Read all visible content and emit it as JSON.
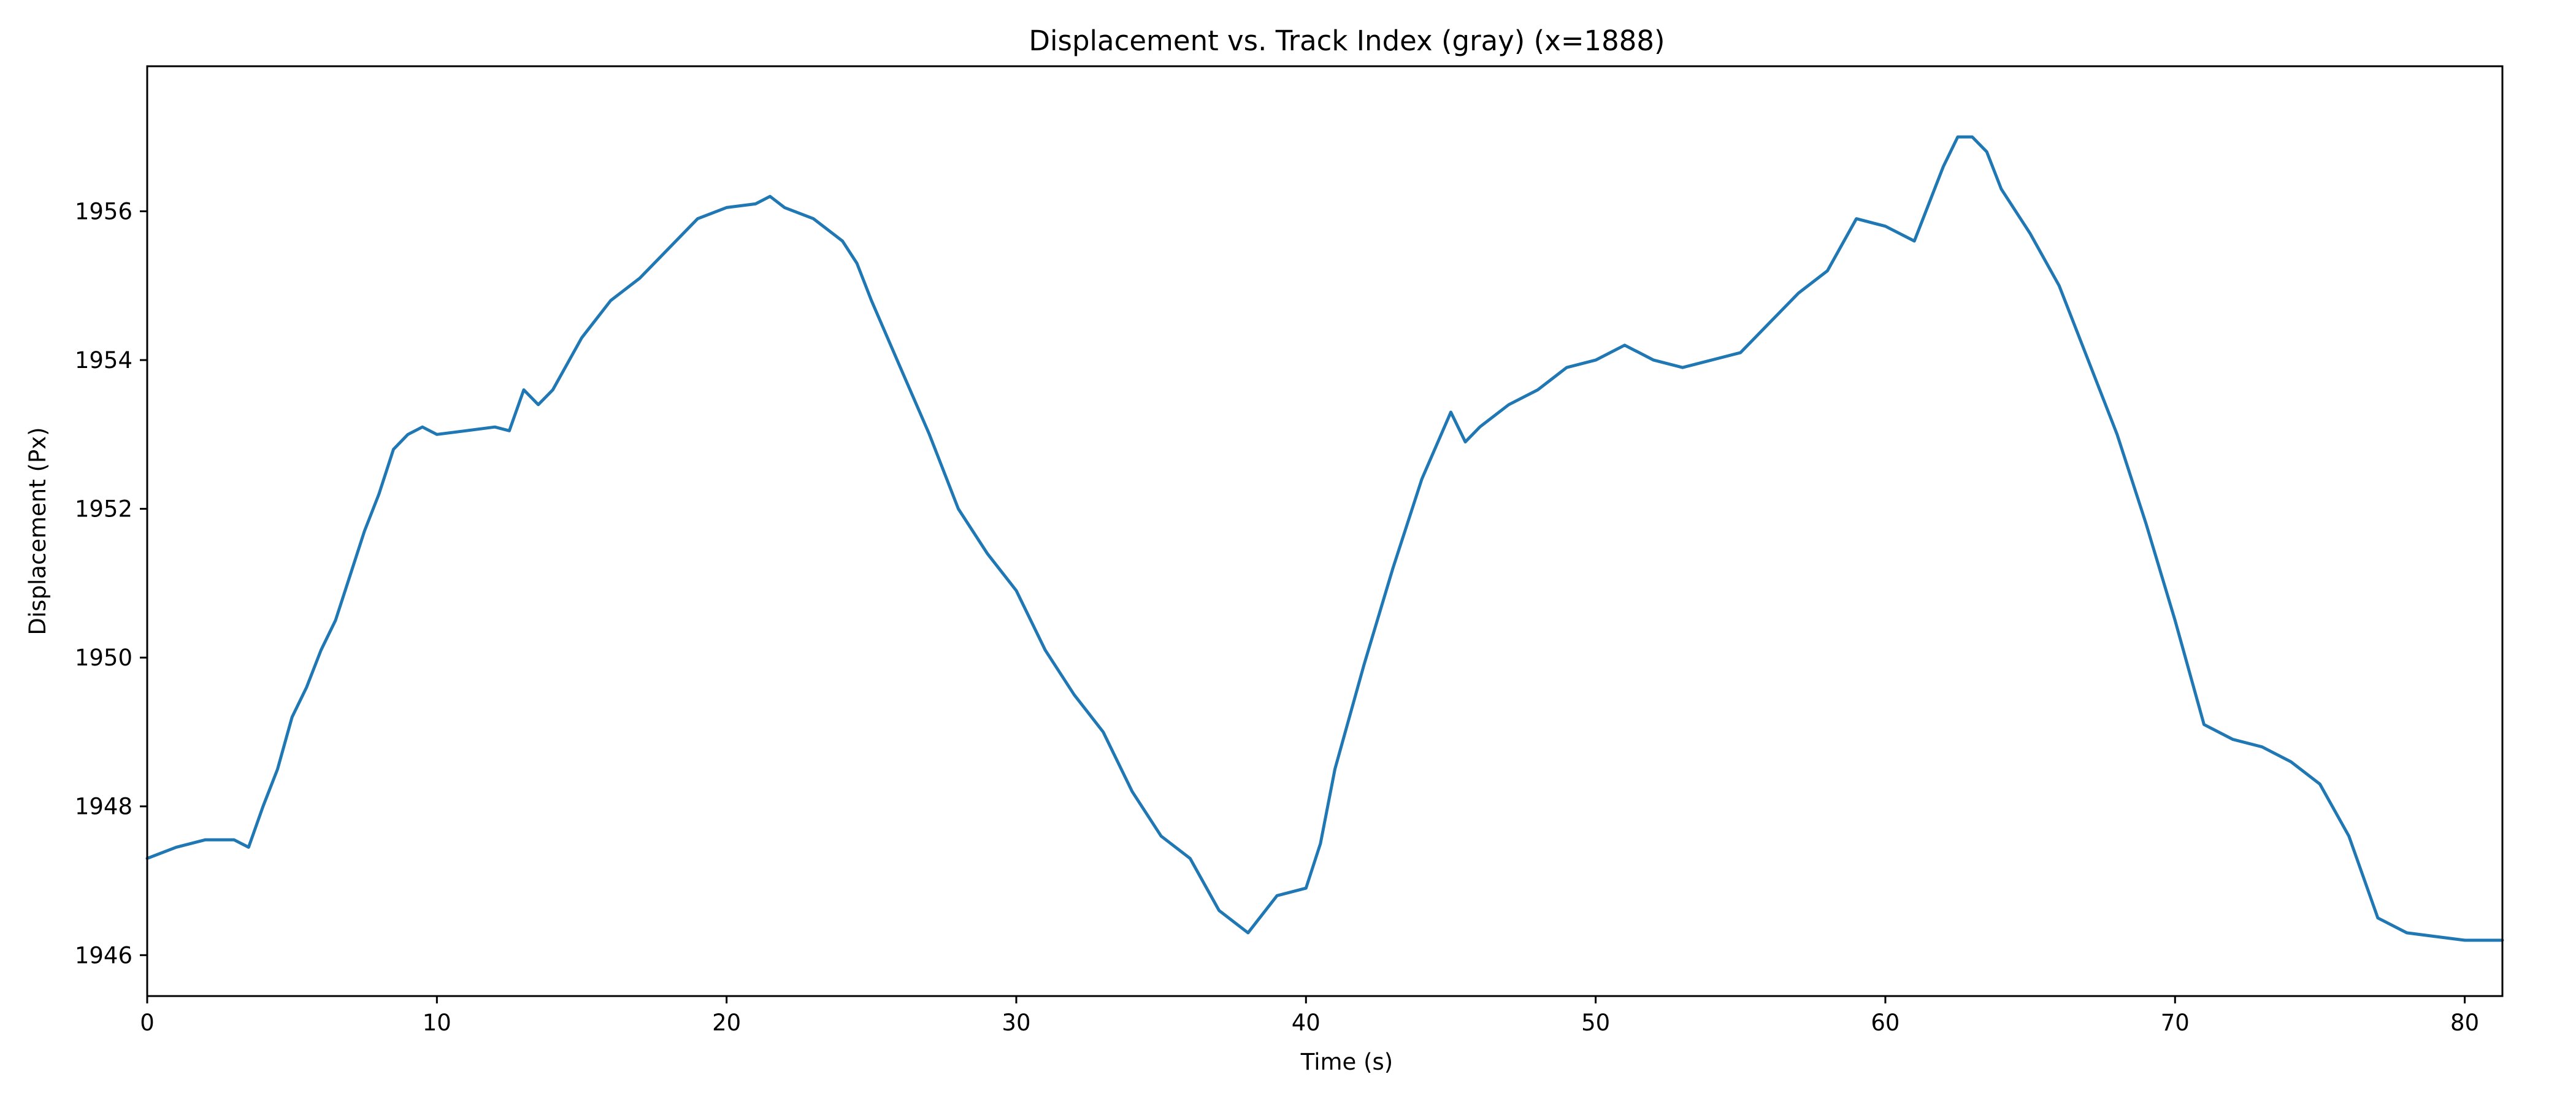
{
  "chart_data": {
    "type": "line",
    "title": "Displacement vs. Track Index (gray) (x=1888)",
    "xlabel": "Time (s)",
    "ylabel": "Displacement (Px)",
    "xlim": [
      0,
      81.3
    ],
    "ylim": [
      1945.45,
      1957.95
    ],
    "xticks": [
      0,
      10,
      20,
      30,
      40,
      50,
      60,
      70,
      80
    ],
    "yticks": [
      1946,
      1948,
      1950,
      1952,
      1954,
      1956
    ],
    "grid": false,
    "line_color": "#1f77b4",
    "series": [
      {
        "x": [
          0,
          1,
          2,
          3,
          3.5,
          4,
          4.5,
          5,
          5.5,
          6,
          6.5,
          7,
          7.5,
          8,
          8.5,
          9,
          9.5,
          10,
          11,
          12,
          12.5,
          13,
          13.5,
          14,
          15,
          16,
          17,
          18,
          19,
          20,
          21,
          21.5,
          22,
          23,
          24,
          24.5,
          25,
          26,
          27,
          28,
          29,
          30,
          31,
          32,
          33,
          34,
          35,
          36,
          37,
          38,
          39,
          40,
          40.5,
          41,
          42,
          43,
          44,
          45,
          45.5,
          46,
          47,
          48,
          49,
          50,
          51,
          52,
          53,
          54,
          55,
          56,
          57,
          58,
          59,
          60,
          61,
          62,
          62.5,
          63,
          63.5,
          64,
          65,
          66,
          67,
          68,
          69,
          70,
          71,
          72,
          73,
          74,
          75,
          76,
          77,
          78,
          79,
          80,
          81.3
        ],
        "values": [
          1947.3,
          1947.45,
          1947.55,
          1947.55,
          1947.45,
          1948,
          1948.5,
          1949.2,
          1949.6,
          1950.1,
          1950.5,
          1951.1,
          1951.7,
          1952.2,
          1952.8,
          1953.0,
          1953.1,
          1953.0,
          1953.05,
          1953.1,
          1953.05,
          1953.6,
          1953.4,
          1953.6,
          1954.3,
          1954.8,
          1955.1,
          1955.5,
          1955.9,
          1956.05,
          1956.1,
          1956.2,
          1956.05,
          1955.9,
          1955.6,
          1955.3,
          1954.8,
          1953.9,
          1953.0,
          1952.0,
          1951.4,
          1950.9,
          1950.1,
          1949.5,
          1949.0,
          1948.2,
          1947.6,
          1947.3,
          1946.6,
          1946.3,
          1946.8,
          1946.9,
          1947.5,
          1948.5,
          1949.9,
          1951.2,
          1952.4,
          1953.3,
          1952.9,
          1953.1,
          1953.4,
          1953.6,
          1953.9,
          1954.0,
          1954.2,
          1954.0,
          1953.9,
          1954.0,
          1954.1,
          1954.5,
          1954.9,
          1955.2,
          1955.9,
          1955.8,
          1955.6,
          1956.6,
          1957.0,
          1957.0,
          1956.8,
          1956.3,
          1955.7,
          1955.0,
          1954.0,
          1953.0,
          1951.8,
          1950.5,
          1949.1,
          1948.9,
          1948.8,
          1948.6,
          1948.3,
          1947.6,
          1946.5,
          1946.3,
          1946.25,
          1946.2,
          1946.2
        ]
      }
    ]
  }
}
